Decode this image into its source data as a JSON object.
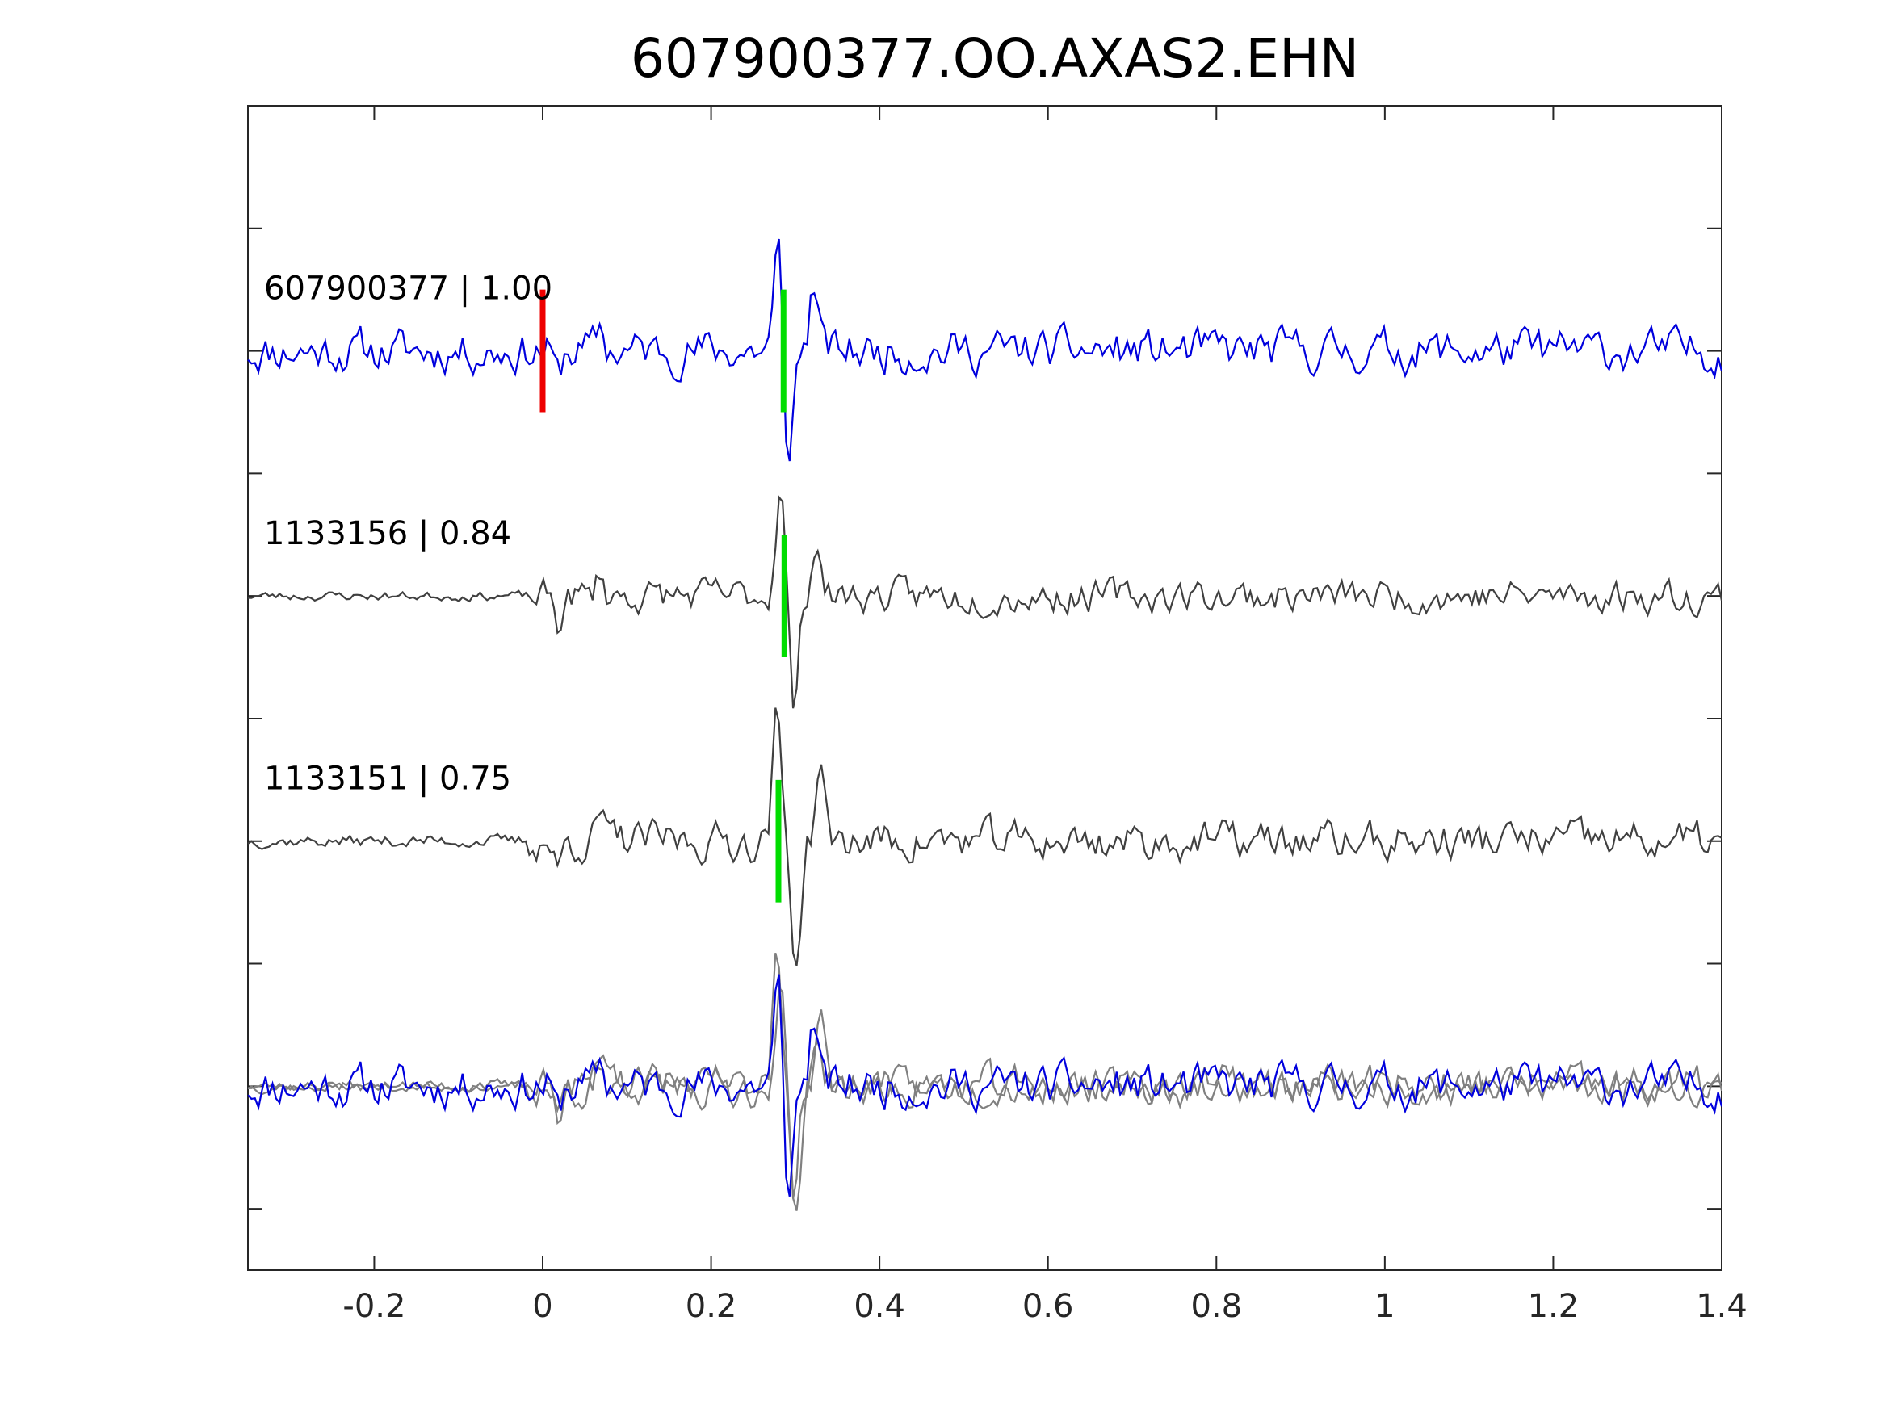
{
  "chart_data": {
    "type": "line",
    "title": "607900377.OO.AXAS2.EHN",
    "xlabel": "",
    "ylabel": "",
    "xlim": [
      -0.35,
      1.4
    ],
    "x_ticks": [
      -0.2,
      0,
      0.2,
      0.4,
      0.6,
      0.8,
      1,
      1.2,
      1.4
    ],
    "x_tick_labels": [
      "-0.2",
      "0",
      "0.2",
      "0.4",
      "0.6",
      "0.8",
      "1",
      "1.2",
      "1.4"
    ],
    "ylim": [
      0,
      9.5
    ],
    "y_ticks": [
      0.5,
      1.5,
      2.5,
      3.5,
      4.5,
      5.5,
      6.5,
      7.5,
      8.5,
      9.5
    ],
    "grid": false,
    "colors": {
      "reference": "#0000dd",
      "template": "#404040",
      "stack_template": "#808080",
      "pick_red": "#ee0000",
      "pick_green": "#00dd00"
    },
    "traces": [
      {
        "label": "607900377 | 1.00",
        "baseline": 7.5,
        "color": "#0000dd",
        "seed": 11,
        "noise": 0.14,
        "pre_noise": 0.14,
        "event_amp": 0.22,
        "signal": [
          {
            "t": 0.28,
            "a": 0.85
          },
          {
            "t": 0.292,
            "a": -0.95
          },
          {
            "t": 0.322,
            "a": 0.55
          }
        ]
      },
      {
        "label": "1133156 | 0.84",
        "baseline": 5.5,
        "color": "#404040",
        "seed": 23,
        "noise": 0.11,
        "pre_noise": 0.03,
        "event_amp": 0.24,
        "signal": [
          {
            "t": 0.282,
            "a": 0.95
          },
          {
            "t": 0.299,
            "a": -0.95
          },
          {
            "t": 0.325,
            "a": 0.48
          }
        ]
      },
      {
        "label": "1133151 | 0.75",
        "baseline": 3.5,
        "color": "#404040",
        "seed": 37,
        "noise": 0.13,
        "pre_noise": 0.04,
        "event_amp": 0.26,
        "signal": [
          {
            "t": 0.278,
            "a": 1.0
          },
          {
            "t": 0.301,
            "a": -1.05
          },
          {
            "t": 0.329,
            "a": 0.6
          }
        ]
      }
    ],
    "stack_baseline": 1.5,
    "picks": [
      {
        "trace": 0,
        "time": 0.0,
        "color": "#ee0000"
      },
      {
        "trace": 0,
        "time": 0.286,
        "color": "#00dd00"
      },
      {
        "trace": 1,
        "time": 0.287,
        "color": "#00dd00"
      },
      {
        "trace": 2,
        "time": 0.28,
        "color": "#00dd00"
      }
    ]
  }
}
